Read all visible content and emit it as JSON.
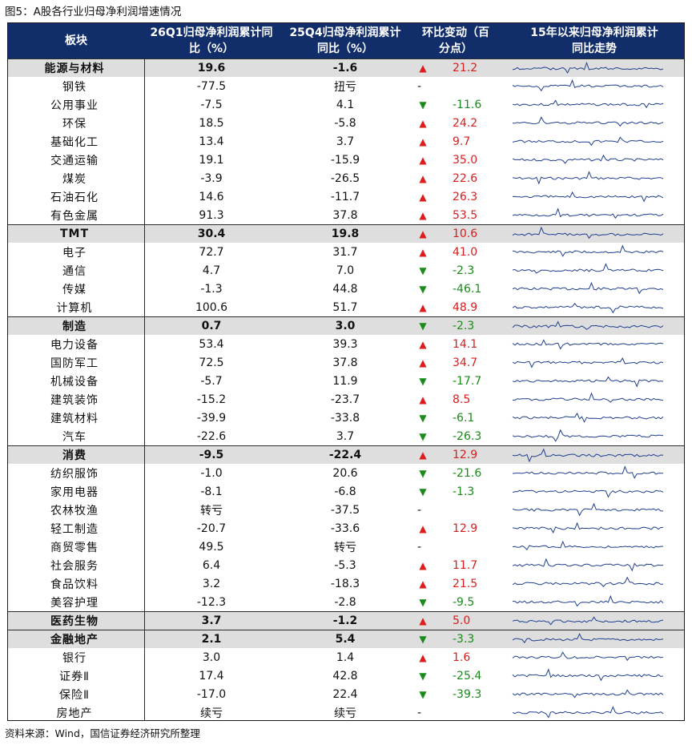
{
  "title": "图5：A股各行业归母净利润增速情况",
  "source": "资料来源：Wind，国信证券经济研究所整理",
  "headers": {
    "sector": "板块",
    "q1": "26Q1归母净利润累计同比（%）",
    "q4": "25Q4归母净利润累计同比（%）",
    "change": "环比变动（百分点）",
    "trend": "15年以来归母净利润累计同比走势"
  },
  "colors": {
    "header_bg": "#112e6b",
    "up": "#e01b1b",
    "down": "#1a8a1a",
    "summary_bg": "#dedede",
    "line": "#1f3f8f"
  },
  "rows": [
    {
      "name": "能源与材料",
      "q1": "19.6",
      "q4": "-1.6",
      "dir": "up",
      "change": "21.2",
      "summary": true
    },
    {
      "name": "钢铁",
      "q1": "-77.5",
      "q4": "扭亏",
      "dir": "none",
      "change": "-"
    },
    {
      "name": "公用事业",
      "q1": "-7.5",
      "q4": "4.1",
      "dir": "down",
      "change": "-11.6"
    },
    {
      "name": "环保",
      "q1": "18.5",
      "q4": "-5.8",
      "dir": "up",
      "change": "24.2"
    },
    {
      "name": "基础化工",
      "q1": "13.4",
      "q4": "3.7",
      "dir": "up",
      "change": "9.7"
    },
    {
      "name": "交通运输",
      "q1": "19.1",
      "q4": "-15.9",
      "dir": "up",
      "change": "35.0"
    },
    {
      "name": "煤炭",
      "q1": "-3.9",
      "q4": "-26.5",
      "dir": "up",
      "change": "22.6"
    },
    {
      "name": "石油石化",
      "q1": "14.6",
      "q4": "-11.7",
      "dir": "up",
      "change": "26.3"
    },
    {
      "name": "有色金属",
      "q1": "91.3",
      "q4": "37.8",
      "dir": "up",
      "change": "53.5"
    },
    {
      "name": "TMT",
      "q1": "30.4",
      "q4": "19.8",
      "dir": "up",
      "change": "10.6",
      "summary": true
    },
    {
      "name": "电子",
      "q1": "72.7",
      "q4": "31.7",
      "dir": "up",
      "change": "41.0"
    },
    {
      "name": "通信",
      "q1": "4.7",
      "q4": "7.0",
      "dir": "down",
      "change": "-2.3"
    },
    {
      "name": "传媒",
      "q1": "-1.3",
      "q4": "44.8",
      "dir": "down",
      "change": "-46.1"
    },
    {
      "name": "计算机",
      "q1": "100.6",
      "q4": "51.7",
      "dir": "up",
      "change": "48.9"
    },
    {
      "name": "制造",
      "q1": "0.7",
      "q4": "3.0",
      "dir": "down",
      "change": "-2.3",
      "summary": true
    },
    {
      "name": "电力设备",
      "q1": "53.4",
      "q4": "39.3",
      "dir": "up",
      "change": "14.1"
    },
    {
      "name": "国防军工",
      "q1": "72.5",
      "q4": "37.8",
      "dir": "up",
      "change": "34.7"
    },
    {
      "name": "机械设备",
      "q1": "-5.7",
      "q4": "11.9",
      "dir": "down",
      "change": "-17.7"
    },
    {
      "name": "建筑装饰",
      "q1": "-15.2",
      "q4": "-23.7",
      "dir": "up",
      "change": "8.5"
    },
    {
      "name": "建筑材料",
      "q1": "-39.9",
      "q4": "-33.8",
      "dir": "down",
      "change": "-6.1"
    },
    {
      "name": "汽车",
      "q1": "-22.6",
      "q4": "3.7",
      "dir": "down",
      "change": "-26.3"
    },
    {
      "name": "消费",
      "q1": "-9.5",
      "q4": "-22.4",
      "dir": "up",
      "change": "12.9",
      "summary": true
    },
    {
      "name": "纺织服饰",
      "q1": "-1.0",
      "q4": "20.6",
      "dir": "down",
      "change": "-21.6"
    },
    {
      "name": "家用电器",
      "q1": "-8.1",
      "q4": "-6.8",
      "dir": "down",
      "change": "-1.3"
    },
    {
      "name": "农林牧渔",
      "q1": "转亏",
      "q4": "-37.5",
      "dir": "none",
      "change": "-"
    },
    {
      "name": "轻工制造",
      "q1": "-20.7",
      "q4": "-33.6",
      "dir": "up",
      "change": "12.9"
    },
    {
      "name": "商贸零售",
      "q1": "49.5",
      "q4": "转亏",
      "dir": "none",
      "change": "-"
    },
    {
      "name": "社会服务",
      "q1": "6.4",
      "q4": "-5.3",
      "dir": "up",
      "change": "11.7"
    },
    {
      "name": "食品饮料",
      "q1": "3.2",
      "q4": "-18.3",
      "dir": "up",
      "change": "21.5"
    },
    {
      "name": "美容护理",
      "q1": "-12.3",
      "q4": "-2.8",
      "dir": "down",
      "change": "-9.5"
    },
    {
      "name": "医药生物",
      "q1": "3.7",
      "q4": "-1.2",
      "dir": "up",
      "change": "5.0",
      "summary": true
    },
    {
      "name": "金融地产",
      "q1": "2.1",
      "q4": "5.4",
      "dir": "down",
      "change": "-3.3",
      "summary": true
    },
    {
      "name": "银行",
      "q1": "3.0",
      "q4": "1.4",
      "dir": "up",
      "change": "1.6"
    },
    {
      "name": "证券Ⅱ",
      "q1": "17.4",
      "q4": "42.8",
      "dir": "down",
      "change": "-25.4"
    },
    {
      "name": "保险Ⅱ",
      "q1": "-17.0",
      "q4": "22.4",
      "dir": "down",
      "change": "-39.3"
    },
    {
      "name": "房地产",
      "q1": "续亏",
      "q4": "续亏",
      "dir": "none",
      "change": "-"
    }
  ]
}
